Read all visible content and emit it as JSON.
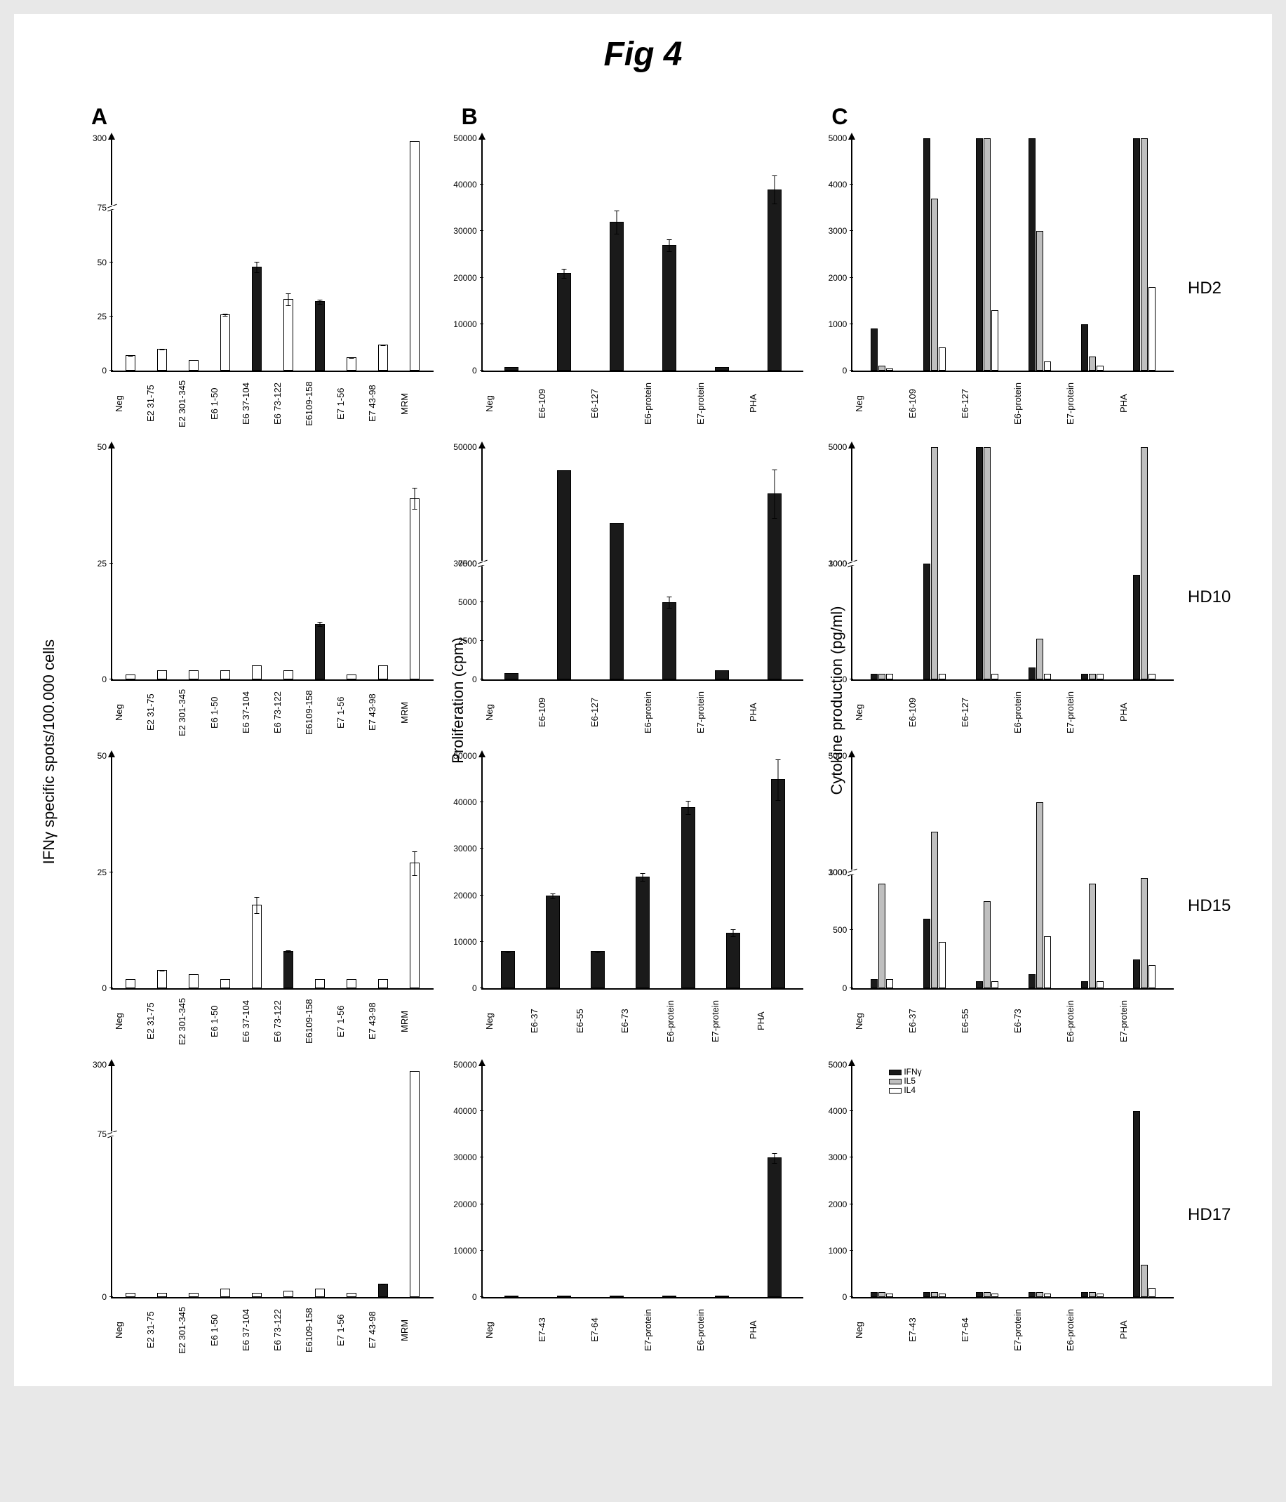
{
  "figure_title": "Fig 4",
  "colors": {
    "black": "#1a1a1a",
    "white": "#ffffff",
    "gray": "#bfbfbf",
    "outline": "#000000"
  },
  "columns": [
    "A",
    "B",
    "C"
  ],
  "rows": [
    "HD2",
    "HD10",
    "HD15",
    "HD17"
  ],
  "y_axis_labels": {
    "A": "IFNγ specific spots/100.000 cells",
    "B": "Proliferation (cpm)",
    "C": "Cytokine production (pg/ml)"
  },
  "legend": {
    "items": [
      {
        "label": "IFNγ",
        "fill": "#1a1a1a"
      },
      {
        "label": "IL5",
        "fill": "#bfbfbf"
      },
      {
        "label": "IL4",
        "fill": "#ffffff"
      }
    ]
  },
  "charts": {
    "A": {
      "categories": [
        "Neg",
        "E2 31-75",
        "E2 301-345",
        "E6 1-50",
        "E6 37-104",
        "E6 73-122",
        "E6109-158",
        "E7 1-56",
        "E7 43-98",
        "MRM"
      ],
      "rows": {
        "HD2": {
          "yticks": [
            0,
            25,
            50,
            75,
            300
          ],
          "break_at": 75,
          "bars": [
            {
              "v": 7,
              "f": "white",
              "e": 3
            },
            {
              "v": 10,
              "f": "white",
              "e": 4
            },
            {
              "v": 5,
              "f": "white",
              "e": 2
            },
            {
              "v": 26,
              "f": "white",
              "e": 3
            },
            {
              "v": 48,
              "f": "black",
              "e": 6
            },
            {
              "v": 33,
              "f": "white",
              "e": 10
            },
            {
              "v": 32,
              "f": "black",
              "e": 4
            },
            {
              "v": 6,
              "f": "white",
              "e": 2
            },
            {
              "v": 12,
              "f": "white",
              "e": 4
            },
            {
              "v": 290,
              "f": "white",
              "e": 0,
              "asBreak": true
            }
          ]
        },
        "HD10": {
          "yticks": [
            0,
            25,
            50
          ],
          "bars": [
            {
              "v": 1,
              "f": "white"
            },
            {
              "v": 2,
              "f": "white"
            },
            {
              "v": 2,
              "f": "white"
            },
            {
              "v": 2,
              "f": "white"
            },
            {
              "v": 3,
              "f": "white"
            },
            {
              "v": 2,
              "f": "white"
            },
            {
              "v": 12,
              "f": "black",
              "e": 2
            },
            {
              "v": 1,
              "f": "white"
            },
            {
              "v": 3,
              "f": "white"
            },
            {
              "v": 39,
              "f": "white",
              "e": 3
            }
          ]
        },
        "HD15": {
          "yticks": [
            0,
            25,
            50
          ],
          "bars": [
            {
              "v": 2,
              "f": "white"
            },
            {
              "v": 4,
              "f": "white",
              "e": 2
            },
            {
              "v": 3,
              "f": "white"
            },
            {
              "v": 2,
              "f": "white"
            },
            {
              "v": 18,
              "f": "white",
              "e": 5
            },
            {
              "v": 8,
              "f": "black",
              "e": 2
            },
            {
              "v": 2,
              "f": "white"
            },
            {
              "v": 2,
              "f": "white"
            },
            {
              "v": 2,
              "f": "white"
            },
            {
              "v": 27,
              "f": "white",
              "e": 5
            }
          ]
        },
        "HD17": {
          "yticks": [
            0,
            75,
            300
          ],
          "break_at": 75,
          "bars": [
            {
              "v": 2,
              "f": "white"
            },
            {
              "v": 2,
              "f": "white"
            },
            {
              "v": 2,
              "f": "white"
            },
            {
              "v": 4,
              "f": "white"
            },
            {
              "v": 2,
              "f": "white"
            },
            {
              "v": 3,
              "f": "white"
            },
            {
              "v": 4,
              "f": "white"
            },
            {
              "v": 2,
              "f": "white"
            },
            {
              "v": 6,
              "f": "black",
              "e": 2
            },
            {
              "v": 280,
              "f": "white",
              "asBreak": true
            }
          ]
        }
      }
    },
    "B": {
      "rows": {
        "HD2": {
          "categories": [
            "Neg",
            "E6-109",
            "E6-127",
            "E6-protein",
            "E7-protein",
            "PHA"
          ],
          "yticks": [
            0,
            10000,
            20000,
            30000,
            40000,
            50000
          ],
          "bars": [
            {
              "v": 800,
              "f": "black"
            },
            {
              "v": 21000,
              "f": "black",
              "e": 2500
            },
            {
              "v": 32000,
              "f": "black",
              "e": 4000
            },
            {
              "v": 27000,
              "f": "black",
              "e": 2500
            },
            {
              "v": 700,
              "f": "black"
            },
            {
              "v": 39000,
              "f": "black",
              "e": 4000
            }
          ]
        },
        "HD10": {
          "categories": [
            "Neg",
            "E6-109",
            "E6-127",
            "E6-protein",
            "E7-protein",
            "PHA"
          ],
          "yticks": [
            0,
            2500,
            5000,
            7500,
            30000,
            50000
          ],
          "break_at": 7500,
          "upper_start": 30000,
          "bars": [
            {
              "v": 400,
              "f": "black"
            },
            {
              "v": 46000,
              "f": "black",
              "asBreak": true
            },
            {
              "v": 37000,
              "f": "black",
              "asBreak": true
            },
            {
              "v": 5000,
              "f": "black",
              "e": 1200
            },
            {
              "v": 600,
              "f": "black"
            },
            {
              "v": 42000,
              "f": "black",
              "e": 2000,
              "asBreak": true
            }
          ]
        },
        "HD15": {
          "categories": [
            "Neg",
            "E6-37",
            "E6-55",
            "E6-73",
            "E6-protein",
            "E7-protein",
            "PHA"
          ],
          "yticks": [
            0,
            10000,
            20000,
            30000,
            40000,
            50000
          ],
          "bars": [
            {
              "v": 8000,
              "f": "black",
              "e": 1500
            },
            {
              "v": 20000,
              "f": "black",
              "e": 1500
            },
            {
              "v": 8000,
              "f": "black",
              "e": 1500
            },
            {
              "v": 24000,
              "f": "black",
              "e": 2000
            },
            {
              "v": 39000,
              "f": "black",
              "e": 2000
            },
            {
              "v": 12000,
              "f": "black",
              "e": 3500
            },
            {
              "v": 45000,
              "f": "black",
              "e": 5000
            }
          ]
        },
        "HD17": {
          "categories": [
            "Neg",
            "E7-43",
            "E7-64",
            "E7-protein",
            "E6-protein",
            "PHA"
          ],
          "yticks": [
            0,
            10000,
            20000,
            30000,
            40000,
            50000
          ],
          "bars": [
            {
              "v": 200,
              "f": "black"
            },
            {
              "v": 200,
              "f": "black"
            },
            {
              "v": 200,
              "f": "black"
            },
            {
              "v": 200,
              "f": "black"
            },
            {
              "v": 200,
              "f": "black"
            },
            {
              "v": 30000,
              "f": "black",
              "e": 2000
            }
          ]
        }
      }
    },
    "C": {
      "rows": {
        "HD2": {
          "categories": [
            "Neg",
            "E6-109",
            "E6-127",
            "E6-protein",
            "E7-protein",
            "PHA"
          ],
          "yticks": [
            0,
            1000,
            2000,
            3000,
            4000,
            5000
          ],
          "groups": [
            [
              {
                "v": 900,
                "f": "black"
              },
              {
                "v": 100,
                "f": "gray"
              },
              {
                "v": 50,
                "f": "white"
              }
            ],
            [
              {
                "v": 5000,
                "f": "black"
              },
              {
                "v": 3700,
                "f": "gray"
              },
              {
                "v": 500,
                "f": "white"
              }
            ],
            [
              {
                "v": 5000,
                "f": "black"
              },
              {
                "v": 5000,
                "f": "gray"
              },
              {
                "v": 1300,
                "f": "white"
              }
            ],
            [
              {
                "v": 5000,
                "f": "black"
              },
              {
                "v": 3000,
                "f": "gray"
              },
              {
                "v": 200,
                "f": "white"
              }
            ],
            [
              {
                "v": 1000,
                "f": "black"
              },
              {
                "v": 300,
                "f": "gray"
              },
              {
                "v": 100,
                "f": "white"
              }
            ],
            [
              {
                "v": 5000,
                "f": "black"
              },
              {
                "v": 5000,
                "f": "gray"
              },
              {
                "v": 1800,
                "f": "white"
              }
            ]
          ]
        },
        "HD10": {
          "categories": [
            "Neg",
            "E6-109",
            "E6-127",
            "E6-protein",
            "E7-protein",
            "PHA"
          ],
          "yticks": [
            0,
            1000,
            3000,
            5000
          ],
          "break_at": 1000,
          "upper_start": 3000,
          "groups": [
            [
              {
                "v": 50,
                "f": "black"
              },
              {
                "v": 50,
                "f": "gray"
              },
              {
                "v": 50,
                "f": "white"
              }
            ],
            [
              {
                "v": 3000,
                "f": "black",
                "asBreak": true
              },
              {
                "v": 5000,
                "f": "gray",
                "asBreak": true
              },
              {
                "v": 50,
                "f": "white"
              }
            ],
            [
              {
                "v": 5000,
                "f": "black",
                "asBreak": true
              },
              {
                "v": 5000,
                "f": "gray",
                "asBreak": true
              },
              {
                "v": 50,
                "f": "white"
              }
            ],
            [
              {
                "v": 100,
                "f": "black"
              },
              {
                "v": 350,
                "f": "gray"
              },
              {
                "v": 50,
                "f": "white"
              }
            ],
            [
              {
                "v": 50,
                "f": "black"
              },
              {
                "v": 50,
                "f": "gray"
              },
              {
                "v": 50,
                "f": "white"
              }
            ],
            [
              {
                "v": 900,
                "f": "black"
              },
              {
                "v": 5000,
                "f": "gray",
                "asBreak": true
              },
              {
                "v": 50,
                "f": "white"
              }
            ]
          ]
        },
        "HD15": {
          "categories": [
            "Neg",
            "E6-37",
            "E6-55",
            "E6-73",
            "E6-protein",
            "E7-protein"
          ],
          "yticks": [
            0,
            500,
            1000,
            3000,
            5000
          ],
          "break_at": 1000,
          "upper_start": 3000,
          "groups": [
            [
              {
                "v": 80,
                "f": "black"
              },
              {
                "v": 900,
                "f": "gray"
              },
              {
                "v": 80,
                "f": "white"
              }
            ],
            [
              {
                "v": 600,
                "f": "black"
              },
              {
                "v": 3700,
                "f": "gray",
                "asBreak": true
              },
              {
                "v": 400,
                "f": "white"
              }
            ],
            [
              {
                "v": 60,
                "f": "black"
              },
              {
                "v": 750,
                "f": "gray"
              },
              {
                "v": 60,
                "f": "white"
              }
            ],
            [
              {
                "v": 120,
                "f": "black"
              },
              {
                "v": 4200,
                "f": "gray",
                "asBreak": true
              },
              {
                "v": 450,
                "f": "white"
              }
            ],
            [
              {
                "v": 60,
                "f": "black"
              },
              {
                "v": 900,
                "f": "gray"
              },
              {
                "v": 60,
                "f": "white"
              }
            ],
            [
              {
                "v": 250,
                "f": "black"
              },
              {
                "v": 2900,
                "f": "gray",
                "asBreak": true
              },
              {
                "v": 200,
                "f": "white"
              }
            ]
          ]
        },
        "HD17": {
          "categories": [
            "Neg",
            "E7-43",
            "E7-64",
            "E7-protein",
            "E6-protein",
            "PHA"
          ],
          "yticks": [
            0,
            1000,
            2000,
            3000,
            4000,
            5000
          ],
          "groups": [
            [
              {
                "v": 100,
                "f": "black"
              },
              {
                "v": 100,
                "f": "gray"
              },
              {
                "v": 80,
                "f": "white"
              }
            ],
            [
              {
                "v": 100,
                "f": "black"
              },
              {
                "v": 100,
                "f": "gray"
              },
              {
                "v": 80,
                "f": "white"
              }
            ],
            [
              {
                "v": 100,
                "f": "black"
              },
              {
                "v": 100,
                "f": "gray"
              },
              {
                "v": 80,
                "f": "white"
              }
            ],
            [
              {
                "v": 100,
                "f": "black"
              },
              {
                "v": 100,
                "f": "gray"
              },
              {
                "v": 80,
                "f": "white"
              }
            ],
            [
              {
                "v": 100,
                "f": "black"
              },
              {
                "v": 100,
                "f": "gray"
              },
              {
                "v": 80,
                "f": "white"
              }
            ],
            [
              {
                "v": 4000,
                "f": "black"
              },
              {
                "v": 700,
                "f": "gray"
              },
              {
                "v": 200,
                "f": "white"
              }
            ]
          ],
          "show_legend": true
        }
      }
    }
  }
}
